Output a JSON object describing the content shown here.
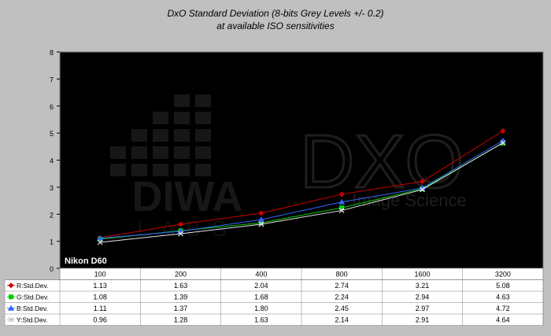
{
  "chart_data": {
    "type": "line",
    "title": "DxO Standard Deviation (8-bits Grey Levels +/- 0.2)",
    "subtitle": "at available ISO sensitivities",
    "camera_label": "Nikon D60",
    "watermarks": [
      "DIWA LABS",
      "DXO Image Science"
    ],
    "categories": [
      "100",
      "200",
      "400",
      "800",
      "1600",
      "3200"
    ],
    "ylim": [
      0,
      8
    ],
    "yticks": [
      "0",
      "1",
      "2",
      "3",
      "4",
      "5",
      "6",
      "7",
      "8"
    ],
    "grid": false,
    "plot_background": "#000000",
    "legend_placement": "data-table-rows",
    "series": [
      {
        "name": "R:Std.Dev.",
        "color": "#cc0000",
        "marker": "diamond",
        "values": [
          1.13,
          1.63,
          2.04,
          2.74,
          3.21,
          5.08
        ],
        "labels": [
          "1.13",
          "1.63",
          "2.04",
          "2.74",
          "3.21",
          "5.08"
        ]
      },
      {
        "name": "G:Std.Dev.",
        "color": "#00cc00",
        "marker": "square",
        "values": [
          1.08,
          1.39,
          1.68,
          2.24,
          2.94,
          4.63
        ],
        "labels": [
          "1.08",
          "1.39",
          "1.68",
          "2.24",
          "2.94",
          "4.63"
        ]
      },
      {
        "name": "B:Std.Dev.",
        "color": "#3366ff",
        "marker": "triangle",
        "values": [
          1.11,
          1.37,
          1.8,
          2.45,
          2.97,
          4.72
        ],
        "labels": [
          "1.11",
          "1.37",
          "1.80",
          "2.45",
          "2.97",
          "4.72"
        ]
      },
      {
        "name": "Y:Std.Dev.",
        "color": "#e8e8e8",
        "marker": "cross",
        "values": [
          0.96,
          1.28,
          1.63,
          2.14,
          2.91,
          4.64
        ],
        "labels": [
          "0.96",
          "1.28",
          "1.63",
          "2.14",
          "2.91",
          "4.64"
        ]
      }
    ]
  }
}
